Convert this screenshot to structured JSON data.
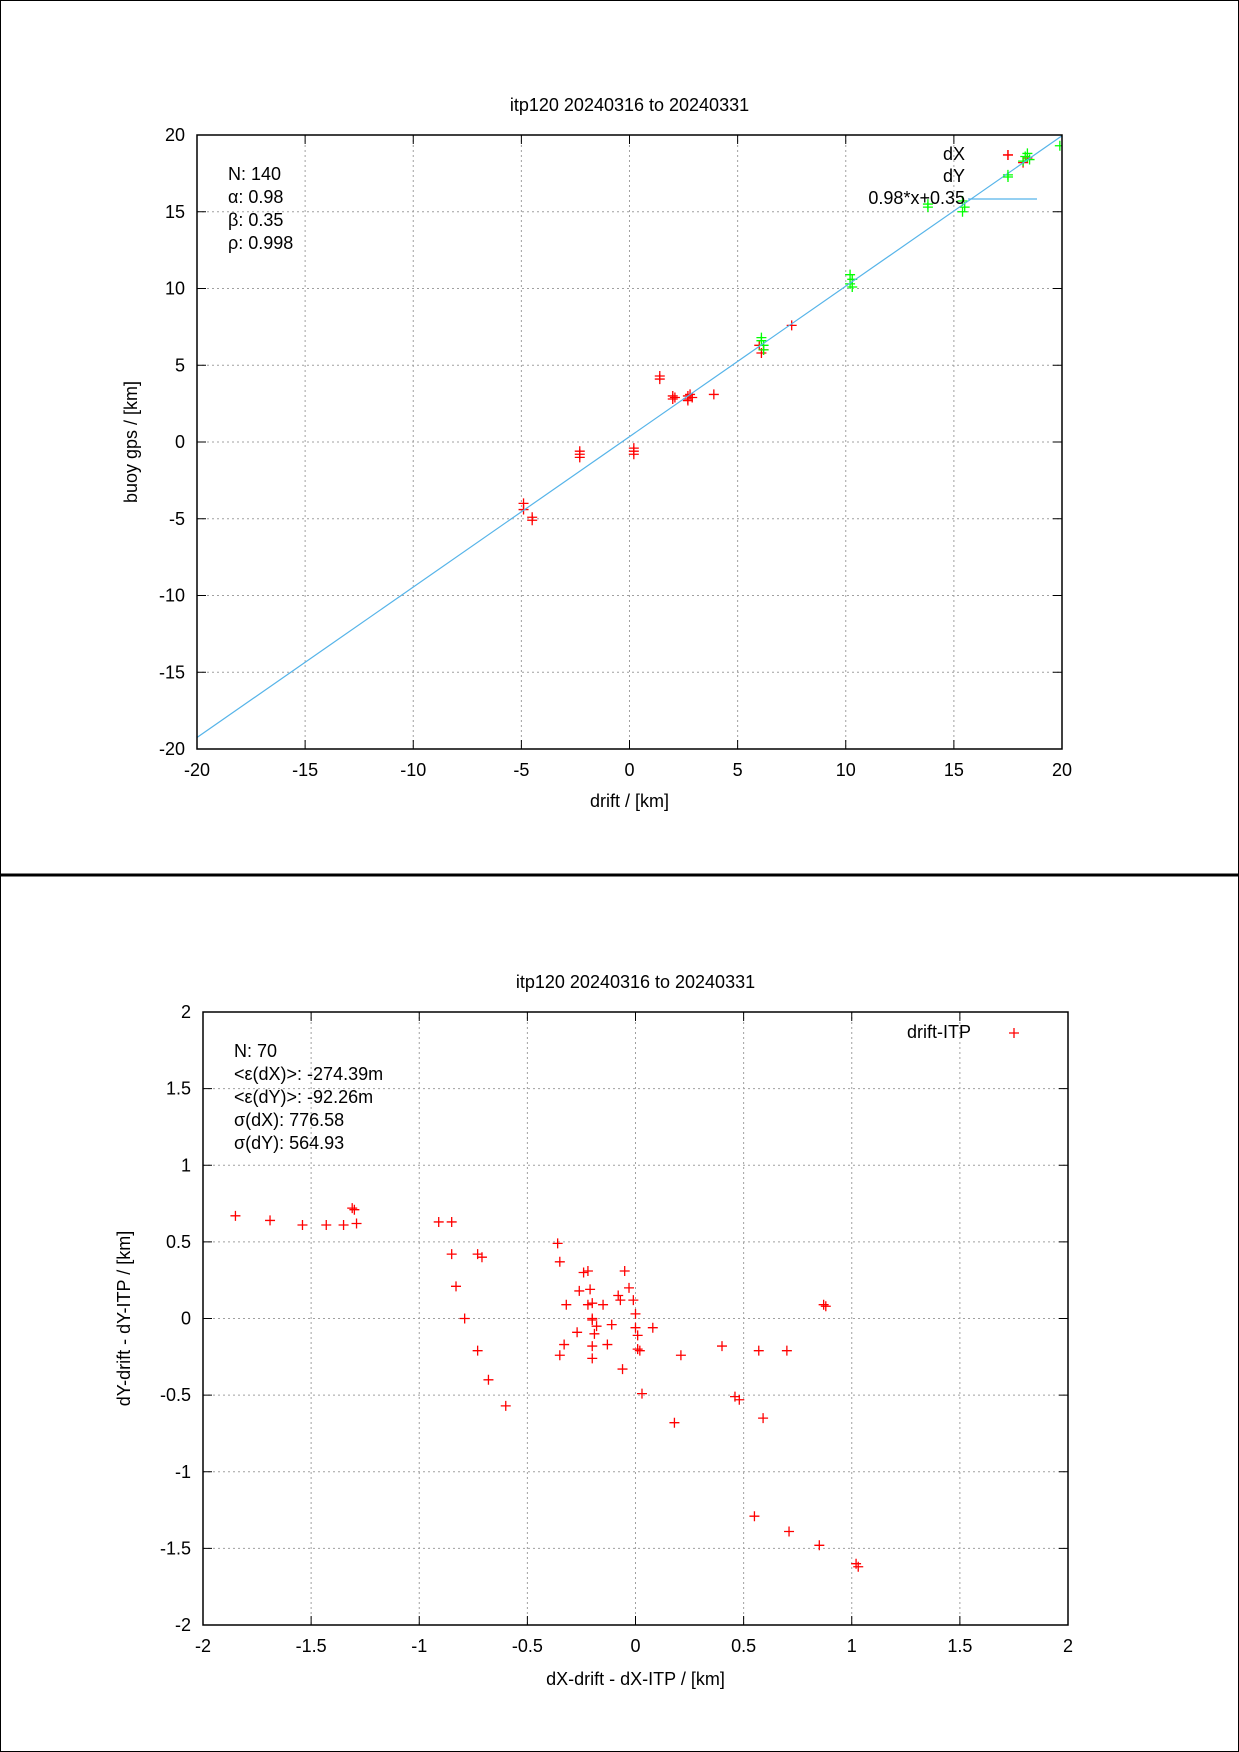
{
  "chart_data": [
    {
      "type": "scatter",
      "title": "itp120 20240316 to 20240331",
      "xlabel": "drift / [km]",
      "ylabel": "buoy gps / [km]",
      "xlim": [
        -20,
        20
      ],
      "ylim": [
        -20,
        20
      ],
      "xticks": [
        "-20",
        "-15",
        "-10",
        "-5",
        "0",
        "5",
        "10",
        "15",
        "20"
      ],
      "yticks": [
        "-20",
        "-15",
        "-10",
        "-5",
        "0",
        "5",
        "10",
        "15",
        "20"
      ],
      "grid": true,
      "legend_position": "top-right",
      "stats": [
        "N: 140",
        "α: 0.98",
        "β: 0.35",
        "ρ: 0.998"
      ],
      "series": [
        {
          "name": "dX",
          "color": "#ff0000",
          "marker": "plus",
          "points": [
            [
              -4.9,
              -4.0
            ],
            [
              -4.9,
              -4.4
            ],
            [
              -4.5,
              -4.9
            ],
            [
              -4.5,
              -5.1
            ],
            [
              -2.3,
              -0.6
            ],
            [
              -2.3,
              -0.8
            ],
            [
              -2.3,
              -1.0
            ],
            [
              0.2,
              -0.4
            ],
            [
              0.2,
              -0.6
            ],
            [
              0.2,
              -0.8
            ],
            [
              1.4,
              4.1
            ],
            [
              1.4,
              4.3
            ],
            [
              2.0,
              2.8
            ],
            [
              2.1,
              2.9
            ],
            [
              2.0,
              3.0
            ],
            [
              2.7,
              2.8
            ],
            [
              2.7,
              3.0
            ],
            [
              2.8,
              3.1
            ],
            [
              2.9,
              2.9
            ],
            [
              2.7,
              2.7
            ],
            [
              3.9,
              3.1
            ],
            [
              6.0,
              6.3
            ],
            [
              6.2,
              6.0
            ],
            [
              6.1,
              5.8
            ],
            [
              7.5,
              7.6
            ],
            [
              17.5,
              18.7
            ],
            [
              18.2,
              18.2
            ],
            [
              18.4,
              18.5
            ]
          ]
        },
        {
          "name": "dY",
          "color": "#00ff00",
          "marker": "plus",
          "points": [
            [
              6.1,
              6.8
            ],
            [
              6.1,
              6.6
            ],
            [
              6.2,
              6.3
            ],
            [
              6.2,
              6.0
            ],
            [
              10.2,
              10.9
            ],
            [
              10.3,
              10.6
            ],
            [
              10.2,
              10.3
            ],
            [
              10.3,
              10.1
            ],
            [
              13.8,
              15.3
            ],
            [
              13.8,
              15.5
            ],
            [
              15.4,
              15.0
            ],
            [
              15.5,
              15.3
            ],
            [
              15.4,
              15.7
            ],
            [
              17.5,
              17.4
            ],
            [
              18.2,
              18.3
            ],
            [
              18.3,
              18.6
            ],
            [
              18.4,
              18.8
            ],
            [
              18.5,
              18.4
            ],
            [
              19.9,
              19.3
            ]
          ]
        },
        {
          "name": "0.98*x+0.35",
          "color": "#56b4e9",
          "type": "line",
          "slope": 0.98,
          "intercept": 0.35
        }
      ]
    },
    {
      "type": "scatter",
      "title": "itp120 20240316 to 20240331",
      "xlabel": "dX-drift - dX-ITP / [km]",
      "ylabel": "dY-drift - dY-ITP / [km]",
      "xlim": [
        -2,
        2
      ],
      "ylim": [
        -2,
        2
      ],
      "xticks": [
        "-2",
        "-1.5",
        "-1",
        "-0.5",
        "0",
        "0.5",
        "1",
        "1.5",
        "2"
      ],
      "yticks": [
        "-2",
        "-1.5",
        "-1",
        "-0.5",
        "0",
        "0.5",
        "1",
        "1.5",
        "2"
      ],
      "grid": true,
      "legend_position": "top-right",
      "stats": [
        "N: 70",
        "<ε(dX)>:  -274.39m",
        "<ε(dY)>: -92.26m",
        "σ(dX):  776.58",
        "σ(dY):  564.93"
      ],
      "series": [
        {
          "name": "drift-ITP",
          "color": "#ff0000",
          "marker": "plus",
          "points": [
            [
              -1.85,
              0.67
            ],
            [
              -1.69,
              0.64
            ],
            [
              -1.54,
              0.61
            ],
            [
              -1.43,
              0.61
            ],
            [
              -1.35,
              0.61
            ],
            [
              -1.31,
              0.72
            ],
            [
              -1.3,
              0.71
            ],
            [
              -1.29,
              0.62
            ],
            [
              -0.91,
              0.63
            ],
            [
              -0.85,
              0.63
            ],
            [
              -0.85,
              0.42
            ],
            [
              -0.83,
              0.21
            ],
            [
              -0.79,
              0.0
            ],
            [
              -0.73,
              0.42
            ],
            [
              -0.73,
              -0.21
            ],
            [
              -0.71,
              0.4
            ],
            [
              -0.68,
              -0.4
            ],
            [
              -0.6,
              -0.57
            ],
            [
              -0.36,
              0.49
            ],
            [
              -0.35,
              0.37
            ],
            [
              -0.35,
              -0.24
            ],
            [
              -0.33,
              -0.17
            ],
            [
              -0.32,
              0.09
            ],
            [
              -0.27,
              -0.09
            ],
            [
              -0.26,
              0.18
            ],
            [
              -0.24,
              0.3
            ],
            [
              -0.22,
              0.09
            ],
            [
              -0.22,
              0.31
            ],
            [
              -0.21,
              0.19
            ],
            [
              -0.2,
              0.1
            ],
            [
              -0.2,
              0.0
            ],
            [
              -0.2,
              -0.01
            ],
            [
              -0.19,
              -0.1
            ],
            [
              -0.2,
              -0.18
            ],
            [
              -0.2,
              -0.26
            ],
            [
              -0.18,
              -0.05
            ],
            [
              -0.15,
              0.09
            ],
            [
              -0.13,
              -0.17
            ],
            [
              -0.11,
              -0.04
            ],
            [
              -0.08,
              0.15
            ],
            [
              -0.07,
              0.12
            ],
            [
              -0.06,
              -0.33
            ],
            [
              -0.05,
              0.31
            ],
            [
              -0.03,
              0.2
            ],
            [
              -0.01,
              0.12
            ],
            [
              0.0,
              0.03
            ],
            [
              0.0,
              -0.06
            ],
            [
              0.01,
              -0.11
            ],
            [
              0.01,
              -0.2
            ],
            [
              0.02,
              -0.21
            ],
            [
              0.03,
              -0.49
            ],
            [
              0.08,
              -0.06
            ],
            [
              0.18,
              -0.68
            ],
            [
              0.21,
              -0.24
            ],
            [
              0.4,
              -0.18
            ],
            [
              0.46,
              -0.51
            ],
            [
              0.48,
              -0.53
            ],
            [
              0.55,
              -1.29
            ],
            [
              0.57,
              -0.21
            ],
            [
              0.59,
              -0.65
            ],
            [
              0.7,
              -0.21
            ],
            [
              0.71,
              -1.39
            ],
            [
              0.85,
              -1.48
            ],
            [
              0.87,
              0.09
            ],
            [
              0.88,
              0.08
            ],
            [
              1.02,
              -1.6
            ],
            [
              1.03,
              -1.62
            ]
          ]
        }
      ]
    }
  ]
}
